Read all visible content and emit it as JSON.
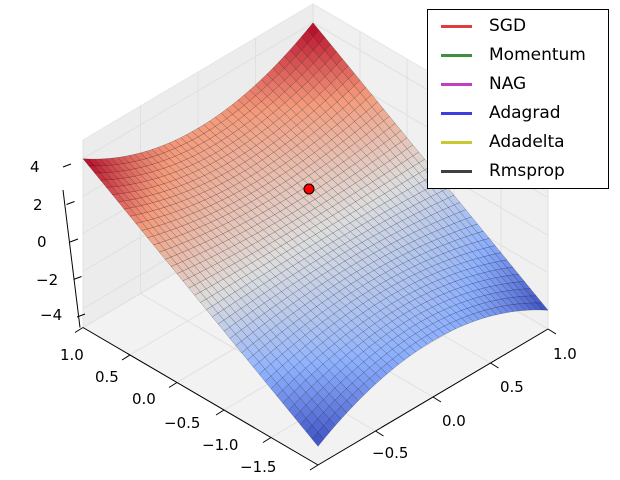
{
  "chart_data": {
    "type": "surface",
    "title": "",
    "x_axis": {
      "ticks": [
        "1.0",
        "0.5",
        "0.0",
        "−0.5",
        "−1.0",
        "−1.5"
      ],
      "range": [
        -1.5,
        1.0
      ]
    },
    "y_axis": {
      "ticks": [
        "−0.5",
        "0.0",
        "0.5",
        "1.0"
      ],
      "range": [
        -1.0,
        1.0
      ]
    },
    "z_axis": {
      "ticks": [
        "4",
        "2",
        "0",
        "−2",
        "−4"
      ],
      "range": [
        -5,
        5
      ]
    },
    "colormap": "coolwarm",
    "grid": true,
    "marker": {
      "x": 0.7,
      "y": 0.4,
      "z": 1.0,
      "color": "#ff0000"
    },
    "legend": {
      "placement": "top-right",
      "entries": [
        {
          "label": "SGD",
          "color": "#e03c3c"
        },
        {
          "label": "Momentum",
          "color": "#3f8f3f"
        },
        {
          "label": "NAG",
          "color": "#c040c0"
        },
        {
          "label": "Adagrad",
          "color": "#3c3ce0"
        },
        {
          "label": "Adadelta",
          "color": "#c8c830"
        },
        {
          "label": "Rmsprop",
          "color": "#404040"
        }
      ]
    }
  }
}
